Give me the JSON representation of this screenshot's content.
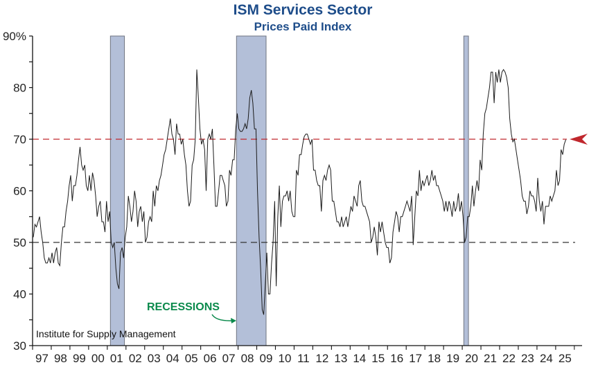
{
  "chart_data": {
    "type": "line",
    "title": "ISM Services Sector",
    "subtitle": "Prices Paid Index",
    "source": "Institute for Supply Management",
    "annotation": "RECESSIONS",
    "ylim": [
      30,
      90
    ],
    "yticks": [
      30,
      40,
      50,
      60,
      70,
      80,
      90
    ],
    "ytick_labels": [
      "30",
      "40",
      "50",
      "60",
      "70",
      "80",
      "90%"
    ],
    "xtick_labels": [
      "97",
      "98",
      "99",
      "00",
      "01",
      "02",
      "03",
      "04",
      "05",
      "06",
      "07",
      "08",
      "09",
      "10",
      "11",
      "12",
      "13",
      "14",
      "15",
      "16",
      "17",
      "18",
      "19",
      "20",
      "21",
      "22",
      "23",
      "24",
      "25"
    ],
    "start": "1997-01",
    "frequency": "monthly",
    "reference_lines": [
      {
        "value": 70,
        "color": "#c0272d",
        "style": "dashed",
        "arrow": true
      },
      {
        "value": 50,
        "color": "#333333",
        "style": "dashed"
      }
    ],
    "recessions": [
      {
        "start": "2001-03",
        "end": "2001-11"
      },
      {
        "start": "2007-12",
        "end": "2009-06"
      },
      {
        "start": "2020-02",
        "end": "2020-04"
      }
    ],
    "colors": {
      "recession": "#b3bfd8",
      "line": "#1a1a1a",
      "title": "#1e4d8a",
      "annotation": "#0b8a4c"
    },
    "values": [
      51,
      53.5,
      53,
      54,
      55,
      52,
      50,
      47,
      46,
      46,
      47,
      46,
      48,
      46,
      48,
      49,
      46,
      45.5,
      50,
      53,
      53,
      56,
      58,
      61,
      63,
      58,
      61,
      61,
      63,
      66,
      68.5,
      65,
      64,
      65,
      61,
      60,
      63,
      60,
      63.5,
      62,
      59,
      55,
      57,
      58,
      54,
      54,
      52,
      58,
      54,
      56,
      50,
      49,
      50,
      45,
      42,
      41,
      48,
      49,
      47,
      51,
      53,
      59,
      57,
      54,
      56,
      60,
      58,
      53,
      56,
      57,
      54,
      56,
      50,
      51,
      54,
      55,
      54,
      60,
      57,
      61,
      60,
      62,
      63,
      65,
      67,
      68,
      70,
      72,
      74,
      71,
      70,
      67,
      73,
      71,
      71,
      69,
      70,
      67,
      65,
      60,
      57,
      58,
      65,
      66,
      70,
      83.5,
      78,
      72,
      69,
      70,
      68,
      60,
      70,
      71,
      70,
      72,
      65,
      57,
      57,
      60,
      63,
      63,
      62,
      61,
      57,
      58,
      64,
      63,
      66,
      66,
      72,
      75,
      72,
      71.5,
      71.5,
      72,
      73,
      72,
      74,
      78,
      79.5,
      77,
      72,
      72,
      60,
      51,
      45,
      37,
      36,
      42,
      48,
      40,
      40,
      46,
      50,
      58,
      41.5,
      55,
      61,
      53,
      58,
      59,
      59,
      60,
      58,
      60,
      56,
      55,
      55,
      64,
      63,
      67,
      67,
      69,
      70.5,
      71,
      71,
      70,
      69,
      70,
      64,
      64,
      62,
      61,
      61,
      56,
      62,
      63,
      62,
      64,
      65,
      64,
      58,
      58,
      56,
      54,
      54,
      53,
      55,
      53,
      54,
      55,
      53,
      55,
      57,
      56,
      59,
      58,
      57,
      61,
      62,
      58,
      57,
      57,
      56,
      55,
      54,
      50,
      51,
      53,
      51,
      47.5,
      54,
      52,
      54,
      52,
      50,
      49,
      49,
      46,
      47,
      52,
      54,
      56,
      55,
      52,
      55,
      55,
      56,
      57,
      58,
      57,
      56,
      59,
      49.5,
      55,
      60,
      59,
      64,
      60,
      62,
      61,
      62,
      63,
      61,
      62,
      64,
      62,
      63,
      61,
      61,
      60,
      59,
      58,
      56,
      58,
      56,
      58,
      57,
      55,
      58,
      56,
      57,
      59.5,
      56,
      58,
      55,
      50,
      51,
      55,
      55,
      57,
      61,
      57,
      60,
      62,
      60,
      66,
      64,
      71,
      75,
      76,
      78,
      80,
      83,
      83,
      77,
      83,
      81,
      83.5,
      81,
      83,
      83.5,
      83,
      82,
      80,
      74,
      71,
      69.5,
      70,
      68,
      66,
      64,
      62,
      59,
      58,
      58,
      55.5,
      57,
      60,
      59,
      59,
      58,
      56,
      62.5,
      58,
      56,
      58,
      53.5,
      57,
      57,
      57,
      59,
      58,
      59,
      60,
      64,
      61,
      62,
      68,
      67,
      69,
      69.9
    ]
  }
}
